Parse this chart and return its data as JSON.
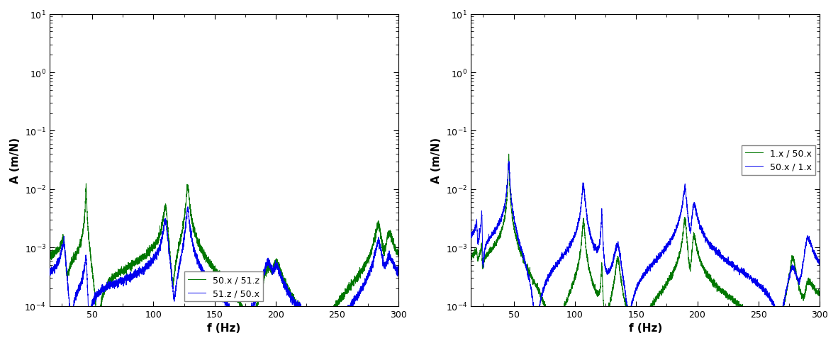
{
  "xlim": [
    15,
    300
  ],
  "ylim_log": [
    -4,
    1
  ],
  "xlabel": "f (Hz)",
  "ylabel": "A (m/N)",
  "xticks": [
    50,
    100,
    150,
    200,
    250,
    300
  ],
  "plot1_legend": [
    "50.x / 51.z",
    "51.z / 50.x"
  ],
  "plot2_legend": [
    "1.x / 50.x",
    "50.x / 1.x"
  ],
  "blue_color": "#0000EE",
  "green_color": "#007700",
  "linewidth": 0.7,
  "figsize": [
    11.82,
    4.85
  ],
  "dpi": 100,
  "background": "#ffffff",
  "legend1_loc": "lower center",
  "legend2_loc": "center right"
}
